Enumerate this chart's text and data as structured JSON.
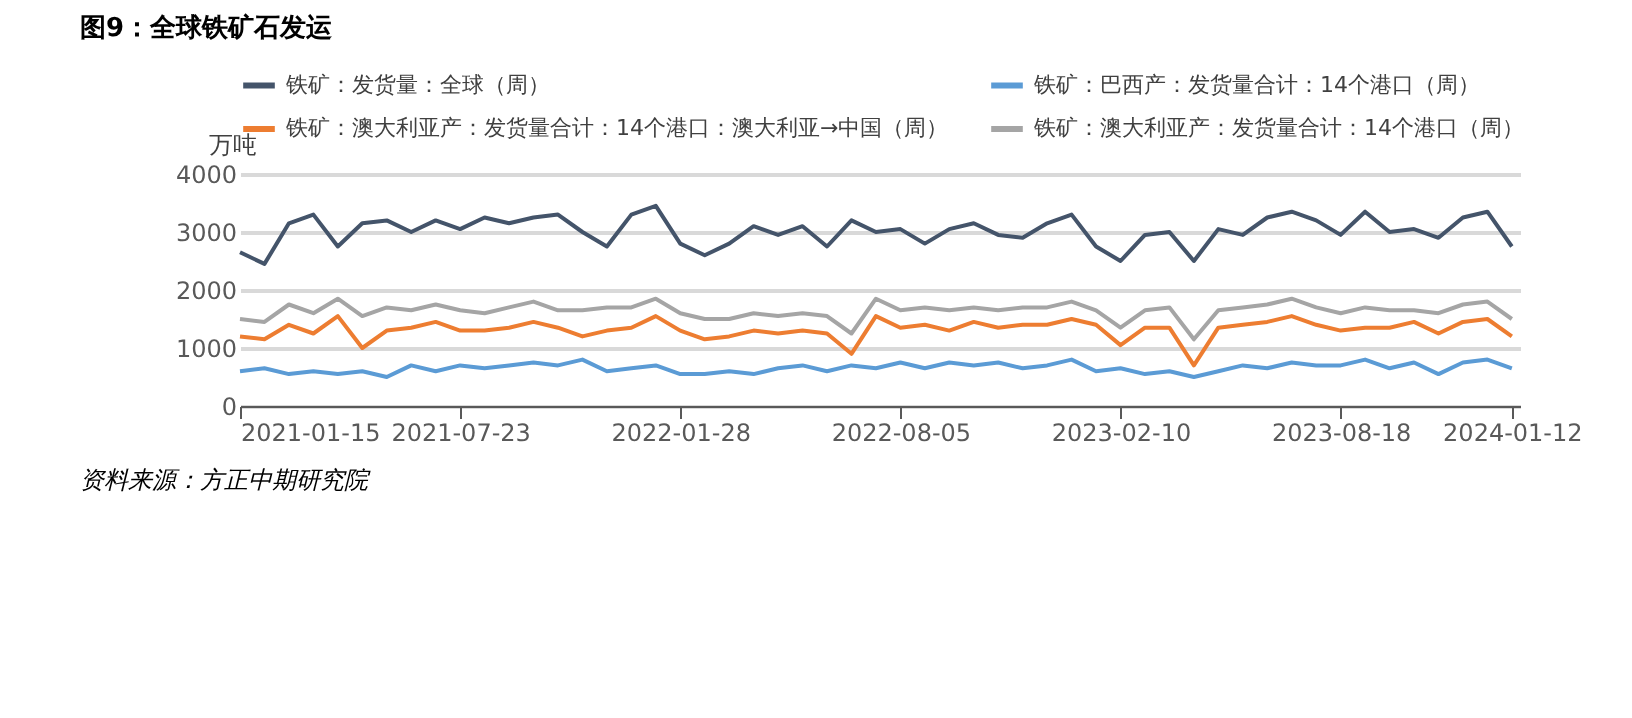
{
  "chart_data": {
    "type": "line",
    "title": "图9：全球铁矿石发运",
    "ylabel": "万吨",
    "annotations": [
      "资料来源：方正中期研究院"
    ],
    "x": [
      "2021-01-15",
      "2021-02-05",
      "2021-02-26",
      "2021-03-19",
      "2021-04-09",
      "2021-04-30",
      "2021-05-21",
      "2021-06-11",
      "2021-07-02",
      "2021-07-23",
      "2021-08-13",
      "2021-09-03",
      "2021-09-24",
      "2021-10-15",
      "2021-11-05",
      "2021-11-26",
      "2021-12-17",
      "2022-01-07",
      "2022-01-28",
      "2022-02-18",
      "2022-03-11",
      "2022-04-01",
      "2022-04-22",
      "2022-05-13",
      "2022-06-03",
      "2022-06-24",
      "2022-07-15",
      "2022-08-05",
      "2022-08-26",
      "2022-09-16",
      "2022-10-07",
      "2022-10-28",
      "2022-11-18",
      "2022-12-09",
      "2022-12-30",
      "2023-01-20",
      "2023-02-10",
      "2023-03-03",
      "2023-03-24",
      "2023-04-14",
      "2023-05-05",
      "2023-05-26",
      "2023-06-16",
      "2023-07-07",
      "2023-07-28",
      "2023-08-18",
      "2023-09-08",
      "2023-09-29",
      "2023-10-20",
      "2023-11-10",
      "2023-12-01",
      "2023-12-22",
      "2024-01-12"
    ],
    "series": [
      {
        "name": "铁矿：发货量：全球（周）",
        "color": "#44546a",
        "values": [
          2650,
          2450,
          3150,
          3300,
          2750,
          3150,
          3200,
          3000,
          3200,
          3050,
          3250,
          3150,
          3250,
          3300,
          3000,
          2750,
          3300,
          3450,
          2800,
          2600,
          2800,
          3100,
          2950,
          3100,
          2750,
          3200,
          3000,
          3050,
          2800,
          3050,
          3150,
          2950,
          2900,
          3150,
          3300,
          2750,
          2500,
          2950,
          3000,
          2500,
          3050,
          2950,
          3250,
          3350,
          3200,
          2950,
          3350,
          3000,
          3050,
          2900,
          3250,
          3350,
          2750
        ]
      },
      {
        "name": "铁矿：巴西产：发货量合计：14个港口（周）",
        "color": "#5b9bd5",
        "values": [
          600,
          650,
          550,
          600,
          550,
          600,
          500,
          700,
          600,
          700,
          650,
          700,
          750,
          700,
          800,
          600,
          650,
          700,
          550,
          550,
          600,
          550,
          650,
          700,
          600,
          700,
          650,
          750,
          650,
          750,
          700,
          750,
          650,
          700,
          800,
          600,
          650,
          550,
          600,
          500,
          600,
          700,
          650,
          750,
          700,
          700,
          800,
          650,
          750,
          550,
          750,
          800,
          650
        ]
      },
      {
        "name": "铁矿：澳大利亚产：发货量合计：14个港口：澳大利亚→中国（周）",
        "color": "#ed7d31",
        "values": [
          1200,
          1150,
          1400,
          1250,
          1550,
          1000,
          1300,
          1350,
          1450,
          1300,
          1300,
          1350,
          1450,
          1350,
          1200,
          1300,
          1350,
          1550,
          1300,
          1150,
          1200,
          1300,
          1250,
          1300,
          1250,
          900,
          1550,
          1350,
          1400,
          1300,
          1450,
          1350,
          1400,
          1400,
          1500,
          1400,
          1050,
          1350,
          1350,
          700,
          1350,
          1400,
          1450,
          1550,
          1400,
          1300,
          1350,
          1350,
          1450,
          1250,
          1450,
          1500,
          1200
        ]
      },
      {
        "name": "铁矿：澳大利亚产：发货量合计：14个港口（周）",
        "color": "#a5a5a5",
        "values": [
          1500,
          1450,
          1750,
          1600,
          1850,
          1550,
          1700,
          1650,
          1750,
          1650,
          1600,
          1700,
          1800,
          1650,
          1650,
          1700,
          1700,
          1850,
          1600,
          1500,
          1500,
          1600,
          1550,
          1600,
          1550,
          1250,
          1850,
          1650,
          1700,
          1650,
          1700,
          1650,
          1700,
          1700,
          1800,
          1650,
          1350,
          1650,
          1700,
          1150,
          1650,
          1700,
          1750,
          1850,
          1700,
          1600,
          1700,
          1650,
          1650,
          1600,
          1750,
          1800,
          1500
        ]
      }
    ],
    "xlim": [
      "2021-01-15",
      "2024-01-19"
    ],
    "xticks": [
      "2021-01-15",
      "2021-07-23",
      "2022-01-28",
      "2022-08-05",
      "2023-02-10",
      "2023-08-18",
      "2024-01-12"
    ],
    "ylim": [
      0,
      4000
    ],
    "yticks": [
      0,
      1000,
      2000,
      3000,
      4000
    ],
    "grid": "y",
    "legend": "top",
    "marker": "none",
    "line_style": "solid"
  }
}
